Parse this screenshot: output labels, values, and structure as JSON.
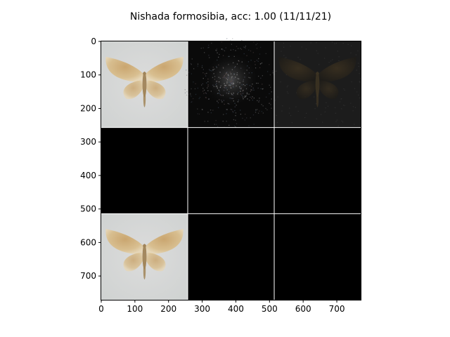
{
  "title": "Nishada formosibia, acc: 1.00 (11/11/21)",
  "chart_data": {
    "type": "image_grid",
    "title": "Nishada formosibia, acc: 1.00 (11/11/21)",
    "xlabel": "",
    "ylabel": "",
    "xlim": [
      0,
      771
    ],
    "ylim": [
      771,
      0
    ],
    "x_ticks": [
      0,
      100,
      200,
      300,
      400,
      500,
      600,
      700
    ],
    "y_ticks": [
      0,
      100,
      200,
      300,
      400,
      500,
      600,
      700
    ],
    "grid": false,
    "grid_rows": 3,
    "grid_cols": 3,
    "tile_size": 257,
    "separator_color": "#ffffff",
    "tiles": [
      {
        "row": 0,
        "col": 0,
        "kind": "moth-light"
      },
      {
        "row": 0,
        "col": 1,
        "kind": "noise-dark"
      },
      {
        "row": 0,
        "col": 2,
        "kind": "moth-dark"
      },
      {
        "row": 1,
        "col": 0,
        "kind": "black"
      },
      {
        "row": 1,
        "col": 1,
        "kind": "black"
      },
      {
        "row": 1,
        "col": 2,
        "kind": "black"
      },
      {
        "row": 2,
        "col": 0,
        "kind": "moth-light"
      },
      {
        "row": 2,
        "col": 1,
        "kind": "black"
      },
      {
        "row": 2,
        "col": 2,
        "kind": "black"
      }
    ]
  }
}
